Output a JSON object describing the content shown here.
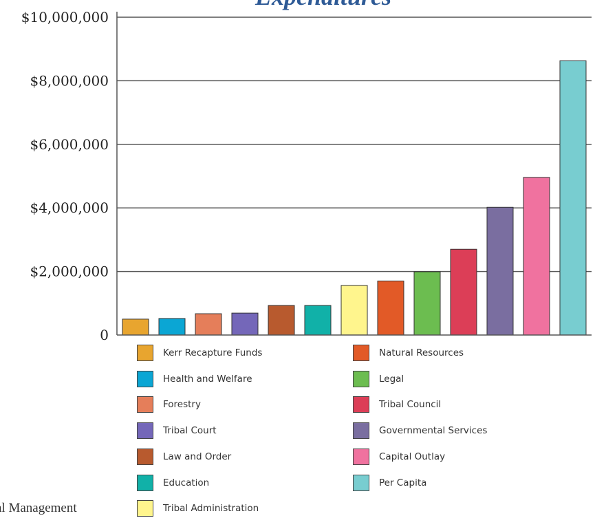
{
  "chart_data": {
    "type": "bar",
    "title": "Expenditures",
    "categories": [
      "Kerr Recapture Funds",
      "Health and Welfare",
      "Forestry",
      "Tribal Court",
      "Law and Order",
      "Education",
      "Tribal Administration",
      "Natural Resources",
      "Legal",
      "Tribal Council",
      "Governmental Services",
      "Capital Outlay",
      "Per Capita"
    ],
    "values": [
      500000,
      520000,
      670000,
      690000,
      930000,
      930000,
      1560000,
      1700000,
      1990000,
      2700000,
      4020000,
      4960000,
      8630000
    ],
    "colors": [
      "#e8a52f",
      "#0ba6d4",
      "#e57e5a",
      "#7467b9",
      "#b85a2e",
      "#11b1a8",
      "#fff58d",
      "#e25a27",
      "#6cbd50",
      "#dc3e57",
      "#7a6ea0",
      "#f0729f",
      "#78cdd0"
    ],
    "ylim": [
      0,
      10000000
    ],
    "yticks": [
      {
        "value": 0,
        "label": "0"
      },
      {
        "value": 2000000,
        "label": "$2,000,000"
      },
      {
        "value": 4000000,
        "label": "$4,000,000"
      },
      {
        "value": 6000000,
        "label": "$6,000,000"
      },
      {
        "value": 8000000,
        "label": "$8,000,000"
      },
      {
        "value": 10000000,
        "label": "$10,000,000"
      }
    ],
    "grid": true,
    "legend_position": "bottom"
  },
  "footer_text": "al Management"
}
